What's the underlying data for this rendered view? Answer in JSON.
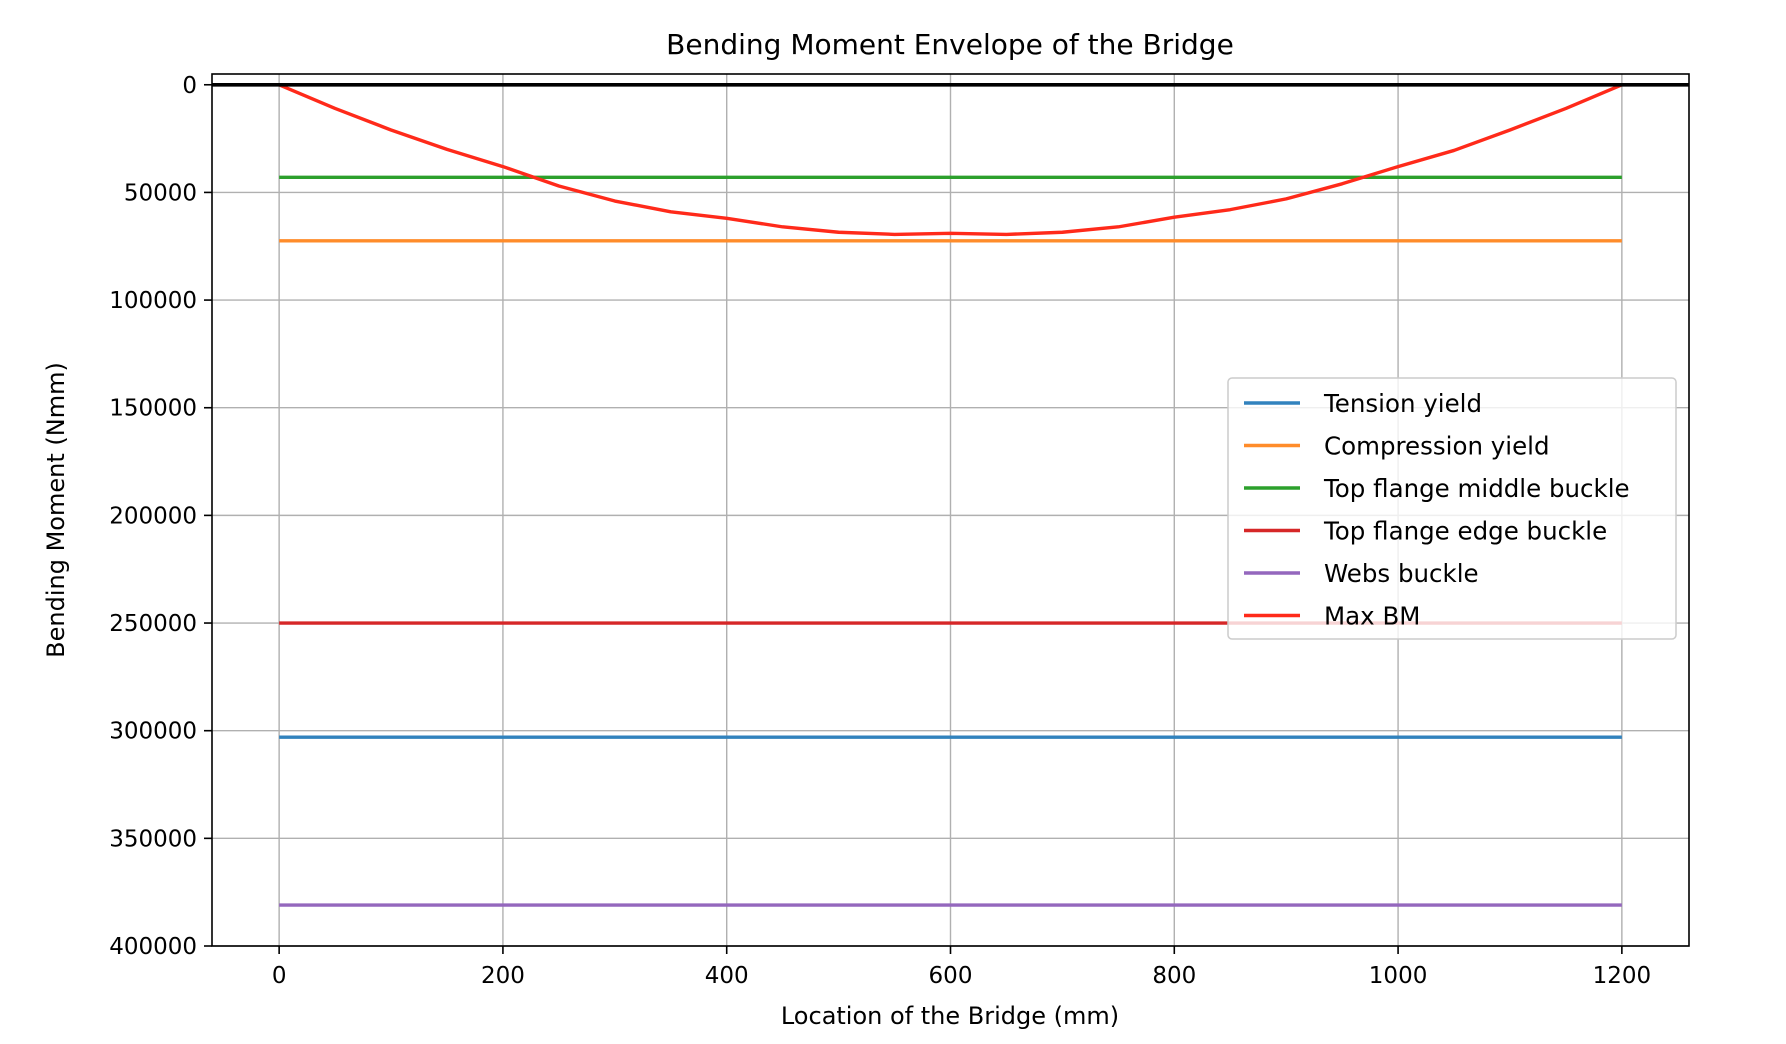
{
  "chart_data": {
    "type": "line",
    "title": "Bending Moment Envelope of the Bridge",
    "xlabel": "Location of the Bridge (mm)",
    "ylabel": "Bending Moment (Nmm)",
    "xlim": [
      -60,
      1260
    ],
    "ylim": [
      400000,
      -5000
    ],
    "y_inverted": true,
    "grid": true,
    "legend_placement": "center-right",
    "x_ticks": [
      0,
      200,
      400,
      600,
      800,
      1000,
      1200
    ],
    "y_ticks": [
      0,
      50000,
      100000,
      150000,
      200000,
      250000,
      300000,
      350000,
      400000
    ],
    "x_tick_labels": [
      "0",
      "200",
      "400",
      "600",
      "800",
      "1000",
      "1200"
    ],
    "y_tick_labels": [
      "0",
      "50000",
      "100000",
      "150000",
      "200000",
      "250000",
      "300000",
      "350000",
      "400000"
    ],
    "reference_line": {
      "y": 0,
      "color": "#000000"
    },
    "series": [
      {
        "name": "Tension yield",
        "color": "#3182bd",
        "x": [
          0,
          1200
        ],
        "y": [
          303000,
          303000
        ]
      },
      {
        "name": "Compression yield",
        "color": "#ff8c2a",
        "x": [
          0,
          1200
        ],
        "y": [
          72500,
          72500
        ]
      },
      {
        "name": "Top flange middle buckle",
        "color": "#2ca02c",
        "x": [
          0,
          1200
        ],
        "y": [
          43000,
          43000
        ]
      },
      {
        "name": "Top flange edge buckle",
        "color": "#d62728",
        "x": [
          0,
          1200
        ],
        "y": [
          250000,
          250000
        ]
      },
      {
        "name": "Webs buckle",
        "color": "#9467bd",
        "x": [
          0,
          1200
        ],
        "y": [
          381000,
          381000
        ]
      },
      {
        "name": "Max BM",
        "color": "#ff2a1a",
        "x": [
          0,
          50,
          100,
          150,
          200,
          250,
          300,
          350,
          400,
          450,
          500,
          550,
          600,
          650,
          700,
          750,
          800,
          850,
          900,
          950,
          1000,
          1050,
          1100,
          1150,
          1200
        ],
        "y": [
          0,
          11000,
          21000,
          30000,
          38000,
          47000,
          54000,
          59000,
          62000,
          66000,
          68500,
          69500,
          69000,
          69500,
          68500,
          66000,
          61500,
          58000,
          53000,
          46000,
          38000,
          30500,
          21000,
          11000,
          0
        ]
      }
    ]
  }
}
